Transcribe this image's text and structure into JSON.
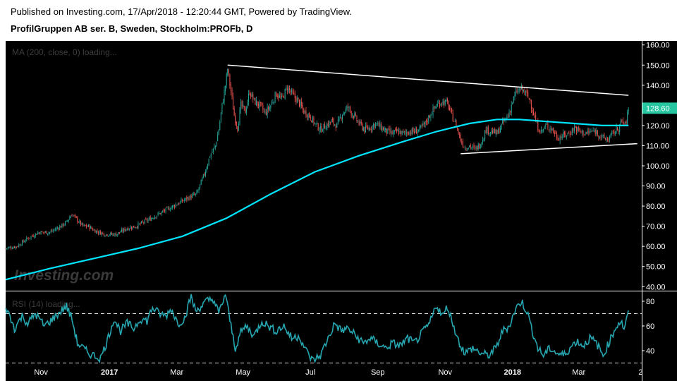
{
  "header": {
    "published": "Published on Investing.com, 17/Apr/2018 - 12:20:44 GMT, Powered by TradingView.",
    "symbol": "ProfilGruppen AB ser. B, Sweden, Stockholm:PROFb, D"
  },
  "watermark": "Investing.com",
  "chart_data": [
    {
      "type": "candlestick",
      "indicator_label": "MA (200, close, 0) loading...",
      "ylim": [
        38,
        162
      ],
      "y_ticks": [
        "40.00",
        "50.00",
        "60.00",
        "70.00",
        "80.00",
        "90.00",
        "100.00",
        "110.00",
        "120.00",
        "130.00",
        "140.00",
        "150.00",
        "160.00"
      ],
      "last_price": "128.60",
      "last_price_color": "#26c6a0",
      "up_color": "#26a69a",
      "down_color": "#ef5350",
      "ma_color": "#00e5ff",
      "price_path": [
        {
          "x": 0,
          "y": 59
        },
        {
          "x": 10,
          "y": 60
        },
        {
          "x": 20,
          "y": 64
        },
        {
          "x": 30,
          "y": 67
        },
        {
          "x": 40,
          "y": 67
        },
        {
          "x": 50,
          "y": 70
        },
        {
          "x": 55,
          "y": 72
        },
        {
          "x": 60,
          "y": 76
        },
        {
          "x": 65,
          "y": 73
        },
        {
          "x": 70,
          "y": 70
        },
        {
          "x": 75,
          "y": 70
        },
        {
          "x": 80,
          "y": 68
        },
        {
          "x": 90,
          "y": 66
        },
        {
          "x": 100,
          "y": 66
        },
        {
          "x": 110,
          "y": 69
        },
        {
          "x": 118,
          "y": 70
        },
        {
          "x": 125,
          "y": 72
        },
        {
          "x": 135,
          "y": 75
        },
        {
          "x": 145,
          "y": 78
        },
        {
          "x": 155,
          "y": 81
        },
        {
          "x": 165,
          "y": 84
        },
        {
          "x": 173,
          "y": 86
        },
        {
          "x": 180,
          "y": 96
        },
        {
          "x": 185,
          "y": 105
        },
        {
          "x": 190,
          "y": 110
        },
        {
          "x": 193,
          "y": 118
        },
        {
          "x": 196,
          "y": 130
        },
        {
          "x": 199,
          "y": 140
        },
        {
          "x": 201,
          "y": 148
        },
        {
          "x": 204,
          "y": 137
        },
        {
          "x": 207,
          "y": 125
        },
        {
          "x": 210,
          "y": 119
        },
        {
          "x": 213,
          "y": 130
        },
        {
          "x": 217,
          "y": 127
        },
        {
          "x": 221,
          "y": 137
        },
        {
          "x": 225,
          "y": 132
        },
        {
          "x": 230,
          "y": 130
        },
        {
          "x": 235,
          "y": 126
        },
        {
          "x": 240,
          "y": 130
        },
        {
          "x": 245,
          "y": 136
        },
        {
          "x": 250,
          "y": 133
        },
        {
          "x": 255,
          "y": 139
        },
        {
          "x": 260,
          "y": 135
        },
        {
          "x": 265,
          "y": 132
        },
        {
          "x": 270,
          "y": 127
        },
        {
          "x": 275,
          "y": 125
        },
        {
          "x": 280,
          "y": 121
        },
        {
          "x": 285,
          "y": 118
        },
        {
          "x": 290,
          "y": 120
        },
        {
          "x": 295,
          "y": 122
        },
        {
          "x": 300,
          "y": 120
        },
        {
          "x": 305,
          "y": 126
        },
        {
          "x": 310,
          "y": 129
        },
        {
          "x": 315,
          "y": 125
        },
        {
          "x": 320,
          "y": 121
        },
        {
          "x": 325,
          "y": 118
        },
        {
          "x": 330,
          "y": 119
        },
        {
          "x": 335,
          "y": 121
        },
        {
          "x": 340,
          "y": 119
        },
        {
          "x": 345,
          "y": 117
        },
        {
          "x": 350,
          "y": 116
        },
        {
          "x": 355,
          "y": 117
        },
        {
          "x": 360,
          "y": 116
        },
        {
          "x": 365,
          "y": 117
        },
        {
          "x": 370,
          "y": 117
        },
        {
          "x": 375,
          "y": 118
        },
        {
          "x": 380,
          "y": 121
        },
        {
          "x": 385,
          "y": 126
        },
        {
          "x": 390,
          "y": 130
        },
        {
          "x": 395,
          "y": 132
        },
        {
          "x": 400,
          "y": 131
        },
        {
          "x": 404,
          "y": 125
        },
        {
          "x": 408,
          "y": 120
        },
        {
          "x": 412,
          "y": 113
        },
        {
          "x": 416,
          "y": 109
        },
        {
          "x": 420,
          "y": 110
        },
        {
          "x": 425,
          "y": 108
        },
        {
          "x": 430,
          "y": 111
        },
        {
          "x": 435,
          "y": 118
        },
        {
          "x": 440,
          "y": 117
        },
        {
          "x": 445,
          "y": 116
        },
        {
          "x": 450,
          "y": 121
        },
        {
          "x": 455,
          "y": 125
        },
        {
          "x": 459,
          "y": 132
        },
        {
          "x": 463,
          "y": 137
        },
        {
          "x": 467,
          "y": 138
        },
        {
          "x": 471,
          "y": 136
        },
        {
          "x": 475,
          "y": 132
        },
        {
          "x": 478,
          "y": 126
        },
        {
          "x": 481,
          "y": 120
        },
        {
          "x": 485,
          "y": 117
        },
        {
          "x": 490,
          "y": 120
        },
        {
          "x": 495,
          "y": 118
        },
        {
          "x": 500,
          "y": 114
        },
        {
          "x": 505,
          "y": 115
        },
        {
          "x": 510,
          "y": 116
        },
        {
          "x": 515,
          "y": 119
        },
        {
          "x": 520,
          "y": 117
        },
        {
          "x": 525,
          "y": 116
        },
        {
          "x": 530,
          "y": 117
        },
        {
          "x": 535,
          "y": 117
        },
        {
          "x": 540,
          "y": 114
        },
        {
          "x": 545,
          "y": 113
        },
        {
          "x": 550,
          "y": 116
        },
        {
          "x": 555,
          "y": 119
        },
        {
          "x": 558,
          "y": 122
        },
        {
          "x": 561,
          "y": 120
        },
        {
          "x": 564,
          "y": 128
        }
      ],
      "ma_path": [
        {
          "x": 0,
          "y": 43.5
        },
        {
          "x": 40,
          "y": 49
        },
        {
          "x": 80,
          "y": 54
        },
        {
          "x": 120,
          "y": 59
        },
        {
          "x": 160,
          "y": 65
        },
        {
          "x": 200,
          "y": 74
        },
        {
          "x": 240,
          "y": 86
        },
        {
          "x": 280,
          "y": 97
        },
        {
          "x": 320,
          "y": 105
        },
        {
          "x": 360,
          "y": 112
        },
        {
          "x": 390,
          "y": 117
        },
        {
          "x": 420,
          "y": 121
        },
        {
          "x": 445,
          "y": 123
        },
        {
          "x": 465,
          "y": 123
        },
        {
          "x": 490,
          "y": 122
        },
        {
          "x": 515,
          "y": 121
        },
        {
          "x": 540,
          "y": 120
        },
        {
          "x": 564,
          "y": 120
        }
      ],
      "trendlines": [
        {
          "from": {
            "x": 201,
            "y": 150
          },
          "to": {
            "x": 564,
            "y": 135
          }
        },
        {
          "from": {
            "x": 412,
            "y": 106
          },
          "to": {
            "x": 572,
            "y": 111
          }
        }
      ]
    },
    {
      "type": "line",
      "indicator_label": "RSI (14) loading...",
      "ylim": [
        28,
        88
      ],
      "y_ticks": [
        "40",
        "60",
        "80"
      ],
      "reference_lines": [
        70,
        30
      ],
      "line_color": "#26a6b0",
      "series": [
        {
          "x": 0,
          "y": 76
        },
        {
          "x": 8,
          "y": 58
        },
        {
          "x": 15,
          "y": 68
        },
        {
          "x": 20,
          "y": 62
        },
        {
          "x": 27,
          "y": 70
        },
        {
          "x": 35,
          "y": 60
        },
        {
          "x": 43,
          "y": 66
        },
        {
          "x": 50,
          "y": 72
        },
        {
          "x": 55,
          "y": 76
        },
        {
          "x": 60,
          "y": 66
        },
        {
          "x": 65,
          "y": 46
        },
        {
          "x": 70,
          "y": 42
        },
        {
          "x": 75,
          "y": 38
        },
        {
          "x": 80,
          "y": 36
        },
        {
          "x": 86,
          "y": 34
        },
        {
          "x": 92,
          "y": 48
        },
        {
          "x": 98,
          "y": 66
        },
        {
          "x": 104,
          "y": 56
        },
        {
          "x": 110,
          "y": 62
        },
        {
          "x": 116,
          "y": 58
        },
        {
          "x": 122,
          "y": 66
        },
        {
          "x": 128,
          "y": 64
        },
        {
          "x": 133,
          "y": 75
        },
        {
          "x": 139,
          "y": 70
        },
        {
          "x": 145,
          "y": 68
        },
        {
          "x": 150,
          "y": 74
        },
        {
          "x": 156,
          "y": 62
        },
        {
          "x": 162,
          "y": 66
        },
        {
          "x": 168,
          "y": 84
        },
        {
          "x": 172,
          "y": 72
        },
        {
          "x": 177,
          "y": 76
        },
        {
          "x": 182,
          "y": 80
        },
        {
          "x": 188,
          "y": 82
        },
        {
          "x": 193,
          "y": 70
        },
        {
          "x": 199,
          "y": 86
        },
        {
          "x": 204,
          "y": 60
        },
        {
          "x": 208,
          "y": 42
        },
        {
          "x": 213,
          "y": 55
        },
        {
          "x": 218,
          "y": 60
        },
        {
          "x": 225,
          "y": 52
        },
        {
          "x": 232,
          "y": 64
        },
        {
          "x": 238,
          "y": 60
        },
        {
          "x": 244,
          "y": 56
        },
        {
          "x": 252,
          "y": 60
        },
        {
          "x": 259,
          "y": 50
        },
        {
          "x": 266,
          "y": 52
        },
        {
          "x": 272,
          "y": 40
        },
        {
          "x": 278,
          "y": 32
        },
        {
          "x": 285,
          "y": 36
        },
        {
          "x": 292,
          "y": 50
        },
        {
          "x": 298,
          "y": 62
        },
        {
          "x": 304,
          "y": 56
        },
        {
          "x": 310,
          "y": 58
        },
        {
          "x": 317,
          "y": 52
        },
        {
          "x": 324,
          "y": 46
        },
        {
          "x": 330,
          "y": 50
        },
        {
          "x": 337,
          "y": 46
        },
        {
          "x": 344,
          "y": 42
        },
        {
          "x": 350,
          "y": 46
        },
        {
          "x": 357,
          "y": 44
        },
        {
          "x": 364,
          "y": 50
        },
        {
          "x": 370,
          "y": 46
        },
        {
          "x": 377,
          "y": 54
        },
        {
          "x": 384,
          "y": 62
        },
        {
          "x": 390,
          "y": 77
        },
        {
          "x": 396,
          "y": 68
        },
        {
          "x": 400,
          "y": 76
        },
        {
          "x": 405,
          "y": 62
        },
        {
          "x": 410,
          "y": 48
        },
        {
          "x": 416,
          "y": 38
        },
        {
          "x": 423,
          "y": 42
        },
        {
          "x": 430,
          "y": 38
        },
        {
          "x": 437,
          "y": 36
        },
        {
          "x": 444,
          "y": 42
        },
        {
          "x": 450,
          "y": 56
        },
        {
          "x": 456,
          "y": 60
        },
        {
          "x": 462,
          "y": 74
        },
        {
          "x": 467,
          "y": 80
        },
        {
          "x": 472,
          "y": 72
        },
        {
          "x": 477,
          "y": 56
        },
        {
          "x": 482,
          "y": 42
        },
        {
          "x": 487,
          "y": 36
        },
        {
          "x": 493,
          "y": 42
        },
        {
          "x": 499,
          "y": 38
        },
        {
          "x": 505,
          "y": 36
        },
        {
          "x": 511,
          "y": 42
        },
        {
          "x": 517,
          "y": 48
        },
        {
          "x": 523,
          "y": 44
        },
        {
          "x": 529,
          "y": 50
        },
        {
          "x": 535,
          "y": 46
        },
        {
          "x": 541,
          "y": 36
        },
        {
          "x": 547,
          "y": 48
        },
        {
          "x": 553,
          "y": 60
        },
        {
          "x": 557,
          "y": 64
        },
        {
          "x": 560,
          "y": 58
        },
        {
          "x": 562,
          "y": 64
        },
        {
          "x": 564,
          "y": 70
        }
      ]
    }
  ],
  "x_axis": {
    "labels": [
      {
        "text": "Nov",
        "x": 32,
        "bold": false
      },
      {
        "text": "2017",
        "x": 94,
        "bold": true
      },
      {
        "text": "Mar",
        "x": 155,
        "bold": false
      },
      {
        "text": "May",
        "x": 215,
        "bold": false
      },
      {
        "text": "Jul",
        "x": 276,
        "bold": false
      },
      {
        "text": "Sep",
        "x": 337,
        "bold": false
      },
      {
        "text": "Nov",
        "x": 398,
        "bold": false
      },
      {
        "text": "2018",
        "x": 459,
        "bold": true
      },
      {
        "text": "Mar",
        "x": 519,
        "bold": false
      },
      {
        "text": "2",
        "x": 575,
        "bold": false
      }
    ]
  }
}
